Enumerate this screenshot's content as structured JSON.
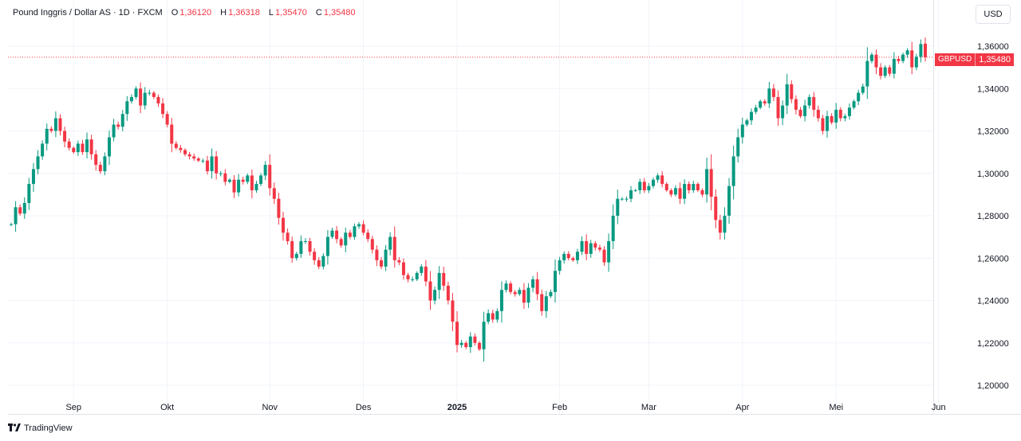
{
  "header": {
    "symbol": "Pound Inggris / Dollar AS · 1D · FXCM",
    "open_label": "O",
    "open": "1,36120",
    "high_label": "H",
    "high": "1,36318",
    "low_label": "L",
    "low": "1,35470",
    "close_label": "C",
    "close": "1,35480"
  },
  "currency_button": "USD",
  "price_tag": {
    "symbol": "GBPUSD",
    "value": "1,35480"
  },
  "brand": "TradingView",
  "colors": {
    "up": "#089981",
    "down": "#f23645",
    "grid": "#f0f3fa",
    "axis_text": "#131722"
  },
  "chart_data": {
    "type": "candlestick",
    "ylim": [
      1.196,
      1.366
    ],
    "y_ticks": [
      {
        "value": 1.2,
        "label": "1,20000"
      },
      {
        "value": 1.22,
        "label": "1,22000"
      },
      {
        "value": 1.24,
        "label": "1,24000"
      },
      {
        "value": 1.26,
        "label": "1,26000"
      },
      {
        "value": 1.28,
        "label": "1,28000"
      },
      {
        "value": 1.3,
        "label": "1,30000"
      },
      {
        "value": 1.32,
        "label": "1,32000"
      },
      {
        "value": 1.34,
        "label": "1,34000"
      },
      {
        "value": 1.36,
        "label": "1,36000"
      }
    ],
    "x_labels": [
      {
        "index": 14,
        "label": "Sep",
        "bold": false
      },
      {
        "index": 35,
        "label": "Okt",
        "bold": false
      },
      {
        "index": 58,
        "label": "Nov",
        "bold": false
      },
      {
        "index": 79,
        "label": "Des",
        "bold": false
      },
      {
        "index": 100,
        "label": "2025",
        "bold": true
      },
      {
        "index": 123,
        "label": "Feb",
        "bold": false
      },
      {
        "index": 143,
        "label": "Mar",
        "bold": false
      },
      {
        "index": 164,
        "label": "Apr",
        "bold": false
      },
      {
        "index": 185,
        "label": "Mei",
        "bold": false
      },
      {
        "index": 208,
        "label": "Jun",
        "bold": false
      }
    ],
    "last_price": 1.3548,
    "close": [
      1.276,
      1.284,
      1.281,
      1.286,
      1.295,
      1.302,
      1.308,
      1.314,
      1.321,
      1.32,
      1.326,
      1.32,
      1.315,
      1.312,
      1.31,
      1.314,
      1.31,
      1.316,
      1.309,
      1.304,
      1.301,
      1.308,
      1.317,
      1.323,
      1.322,
      1.328,
      1.334,
      1.336,
      1.34,
      1.332,
      1.338,
      1.338,
      1.336,
      1.333,
      1.328,
      1.323,
      1.314,
      1.312,
      1.311,
      1.309,
      1.308,
      1.307,
      1.306,
      1.306,
      1.301,
      1.308,
      1.3,
      1.3,
      1.296,
      1.297,
      1.291,
      1.297,
      1.296,
      1.299,
      1.292,
      1.295,
      1.299,
      1.304,
      1.293,
      1.288,
      1.279,
      1.272,
      1.268,
      1.26,
      1.262,
      1.268,
      1.268,
      1.263,
      1.259,
      1.256,
      1.261,
      1.27,
      1.273,
      1.269,
      1.266,
      1.272,
      1.27,
      1.275,
      1.276,
      1.272,
      1.269,
      1.264,
      1.259,
      1.256,
      1.264,
      1.27,
      1.259,
      1.258,
      1.252,
      1.25,
      1.25,
      1.253,
      1.256,
      1.249,
      1.24,
      1.245,
      1.253,
      1.247,
      1.24,
      1.23,
      1.219,
      1.22,
      1.218,
      1.223,
      1.22,
      1.217,
      1.23,
      1.234,
      1.231,
      1.235,
      1.245,
      1.248,
      1.244,
      1.243,
      1.245,
      1.239,
      1.246,
      1.25,
      1.243,
      1.235,
      1.242,
      1.244,
      1.254,
      1.259,
      1.262,
      1.26,
      1.259,
      1.263,
      1.268,
      1.262,
      1.267,
      1.265,
      1.264,
      1.258,
      1.268,
      1.28,
      1.288,
      1.288,
      1.288,
      1.292,
      1.292,
      1.296,
      1.292,
      1.294,
      1.297,
      1.299,
      1.295,
      1.292,
      1.29,
      1.293,
      1.288,
      1.295,
      1.292,
      1.295,
      1.292,
      1.29,
      1.302,
      1.289,
      1.278,
      1.272,
      1.28,
      1.294,
      1.308,
      1.317,
      1.323,
      1.325,
      1.329,
      1.331,
      1.334,
      1.333,
      1.34,
      1.336,
      1.326,
      1.332,
      1.342,
      1.335,
      1.33,
      1.327,
      1.332,
      1.336,
      1.33,
      1.326,
      1.32,
      1.327,
      1.324,
      1.33,
      1.326,
      1.327,
      1.331,
      1.334,
      1.338,
      1.341,
      1.353,
      1.356,
      1.35,
      1.346,
      1.35,
      1.347,
      1.354,
      1.353,
      1.356,
      1.358,
      1.35,
      1.355,
      1.361,
      1.3548
    ],
    "open": [
      1.2758,
      1.276,
      1.284,
      1.281,
      1.286,
      1.295,
      1.302,
      1.308,
      1.314,
      1.321,
      1.32,
      1.326,
      1.32,
      1.315,
      1.312,
      1.31,
      1.314,
      1.31,
      1.316,
      1.309,
      1.304,
      1.301,
      1.308,
      1.317,
      1.323,
      1.322,
      1.328,
      1.334,
      1.336,
      1.34,
      1.332,
      1.338,
      1.338,
      1.336,
      1.333,
      1.328,
      1.323,
      1.314,
      1.312,
      1.311,
      1.309,
      1.308,
      1.307,
      1.306,
      1.306,
      1.301,
      1.308,
      1.3,
      1.3,
      1.296,
      1.297,
      1.291,
      1.297,
      1.296,
      1.299,
      1.292,
      1.295,
      1.299,
      1.304,
      1.293,
      1.288,
      1.279,
      1.272,
      1.268,
      1.26,
      1.262,
      1.268,
      1.268,
      1.263,
      1.259,
      1.256,
      1.261,
      1.27,
      1.273,
      1.269,
      1.266,
      1.272,
      1.27,
      1.275,
      1.276,
      1.272,
      1.269,
      1.264,
      1.259,
      1.256,
      1.264,
      1.27,
      1.259,
      1.258,
      1.252,
      1.25,
      1.25,
      1.253,
      1.256,
      1.249,
      1.24,
      1.245,
      1.253,
      1.247,
      1.24,
      1.23,
      1.219,
      1.22,
      1.218,
      1.223,
      1.22,
      1.217,
      1.23,
      1.234,
      1.231,
      1.235,
      1.245,
      1.248,
      1.244,
      1.243,
      1.245,
      1.239,
      1.246,
      1.25,
      1.243,
      1.235,
      1.242,
      1.244,
      1.254,
      1.259,
      1.262,
      1.26,
      1.259,
      1.263,
      1.268,
      1.262,
      1.267,
      1.265,
      1.264,
      1.258,
      1.268,
      1.28,
      1.288,
      1.288,
      1.288,
      1.292,
      1.292,
      1.296,
      1.292,
      1.294,
      1.297,
      1.299,
      1.295,
      1.292,
      1.29,
      1.293,
      1.288,
      1.295,
      1.292,
      1.295,
      1.292,
      1.29,
      1.302,
      1.289,
      1.278,
      1.272,
      1.28,
      1.294,
      1.308,
      1.317,
      1.323,
      1.325,
      1.329,
      1.331,
      1.334,
      1.333,
      1.34,
      1.336,
      1.326,
      1.332,
      1.342,
      1.335,
      1.33,
      1.327,
      1.332,
      1.336,
      1.33,
      1.326,
      1.32,
      1.327,
      1.324,
      1.33,
      1.326,
      1.327,
      1.331,
      1.334,
      1.338,
      1.341,
      1.353,
      1.356,
      1.35,
      1.346,
      1.35,
      1.347,
      1.354,
      1.353,
      1.356,
      1.358,
      1.35,
      1.355,
      1.3612
    ]
  }
}
